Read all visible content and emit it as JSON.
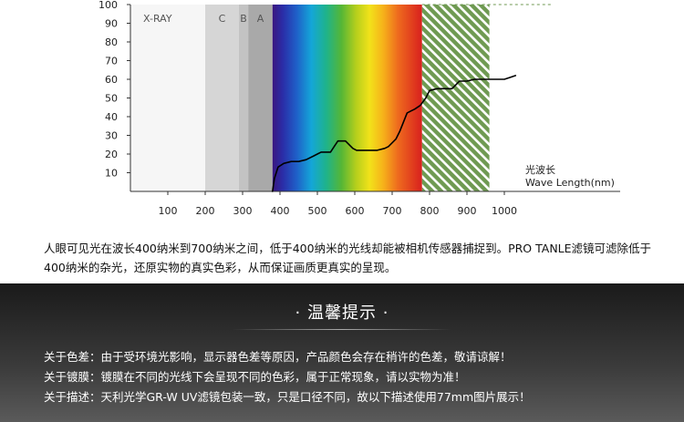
{
  "chart_data": {
    "type": "line",
    "title": "",
    "xlabel_cn": "光波长",
    "xlabel_en": "Wave Length(nm)",
    "ylabel": "",
    "xlim": [
      0,
      1040
    ],
    "ylim": [
      0,
      100
    ],
    "x_ticks": [
      100,
      200,
      300,
      400,
      500,
      600,
      700,
      800,
      900,
      1000
    ],
    "y_ticks": [
      10,
      20,
      30,
      40,
      50,
      60,
      70,
      80,
      90,
      100
    ],
    "grid": "horizontal dashed at 100",
    "bands": [
      {
        "label": "X-RAY",
        "x0": 0,
        "x1": 200,
        "color": "#f6f6f6"
      },
      {
        "label": "C",
        "x0": 200,
        "x1": 290,
        "color": "#d6d6d6"
      },
      {
        "label": "B",
        "x0": 290,
        "x1": 315,
        "color": "#c3c3c3"
      },
      {
        "label": "A",
        "x0": 315,
        "x1": 380,
        "color": "#a9a9a9"
      }
    ],
    "visible_band": {
      "x0": 380,
      "x1": 780
    },
    "infrared_band": {
      "x0": 780,
      "x1": 960,
      "color": "#6f9a52"
    },
    "series": [
      {
        "color": "#000000",
        "x": [
          380,
          385,
          395,
          410,
          430,
          450,
          470,
          490,
          500,
          510,
          520,
          535,
          545,
          555,
          565,
          575,
          585,
          595,
          605,
          620,
          640,
          660,
          680,
          690,
          700,
          710,
          720,
          730,
          740,
          750,
          760,
          775,
          790,
          800,
          820,
          840,
          860,
          870,
          880,
          900,
          920,
          940,
          960,
          980,
          1000,
          1015,
          1030
        ],
        "y": [
          0,
          7,
          13,
          15,
          16,
          16,
          17,
          19,
          20,
          21,
          21,
          21,
          24,
          27,
          27,
          27,
          25,
          23,
          22,
          22,
          22,
          22,
          23,
          24,
          26,
          28,
          32,
          37,
          42,
          43,
          44,
          46,
          50,
          54,
          55,
          55,
          55,
          57,
          59,
          59,
          60,
          60,
          60,
          60,
          60,
          61,
          62
        ]
      }
    ]
  },
  "description": "人眼可见光在波长400纳米到700纳米之间，低于400纳米的光线却能被相机传感器捕捉到。PRO TANLE滤镜可滤除低于400纳米的杂光，还原实物的真实色彩，从而保证画质更真实的呈现。",
  "tips": {
    "title": "· 温馨提示 ·",
    "items": [
      "关于色差：由于受环境光影响，显示器色差等原因，产品颜色会存在稍许的色差，敬请谅解！",
      "关于镀膜：镀膜在不同的光线下会呈现不同的色彩，属于正常现象，请以实物为准！",
      "关于描述：天利光学GR-W UV滤镜包装一致，只是口径不同，故以下描述使用77mm图片展示！"
    ]
  }
}
